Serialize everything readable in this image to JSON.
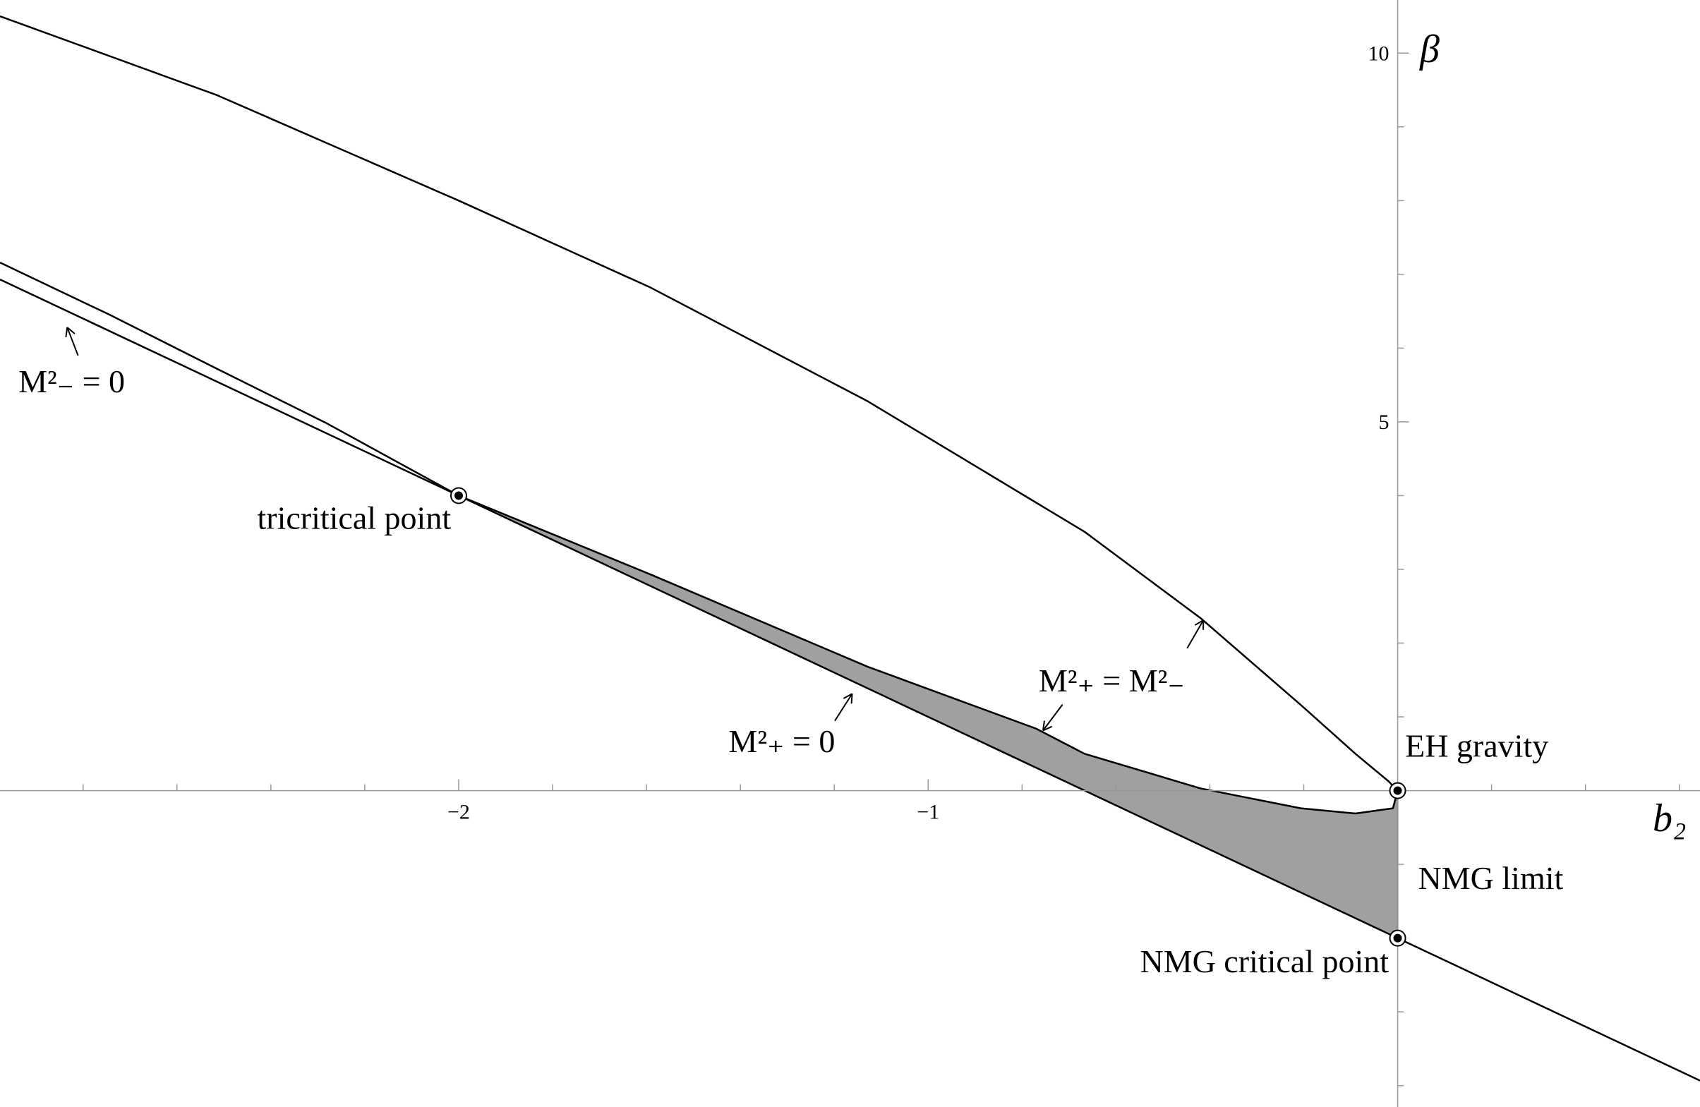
{
  "chart_data": {
    "type": "line",
    "x_label": "b₂",
    "y_label": "β",
    "xlim": [
      -2.977,
      0.644
    ],
    "ylim": [
      -4.29,
      10.72
    ],
    "xticks": [
      {
        "value": -2,
        "label": "−2"
      },
      {
        "value": -1,
        "label": "−1"
      }
    ],
    "yticks": [
      5,
      10
    ],
    "xminor": [
      -2.8,
      -2.6,
      -2.4,
      -2.2,
      -1.8,
      -1.6,
      -1.4,
      -1.2,
      -0.8,
      -0.6,
      -0.4,
      -0.2,
      0.2,
      0.4,
      0.6
    ],
    "yminor": [
      -4,
      -3,
      -2,
      -1,
      1,
      2,
      3,
      4,
      6,
      7,
      8,
      9
    ],
    "series": [
      {
        "color": "#a0a0a0",
        "fill": "#a0a0a0",
        "x": [
          0,
          -0.01,
          -0.09,
          -0.206,
          -0.42,
          -0.667,
          -0.77,
          -1.129,
          -1.591,
          -2.0,
          0
        ],
        "values": [
          0,
          -0.24,
          -0.31,
          -0.24,
          0.03,
          0.5,
          0.84,
          1.68,
          2.93,
          4.0,
          -2.0
        ]
      },
      {
        "color": "#000000",
        "x": [
          -2.977,
          -2.515,
          -2.0,
          -1.591,
          -1.129,
          -0.667,
          -0.42,
          -0.206,
          -0.09,
          -0.02,
          0,
          -0.01,
          -0.09,
          -0.206,
          -0.42,
          -0.667,
          -0.77,
          -1.129,
          -1.591,
          -2.0,
          -2.284,
          -2.515,
          -2.746,
          -2.977
        ],
        "values": [
          10.5,
          9.43,
          8.0,
          6.82,
          5.28,
          3.51,
          2.34,
          1.16,
          0.5,
          0.13,
          0,
          -0.24,
          -0.31,
          -0.24,
          0.03,
          0.5,
          0.84,
          1.68,
          2.93,
          4.0,
          4.99,
          5.72,
          6.46,
          7.16
        ]
      },
      {
        "color": "#000000",
        "x": [
          -2.977,
          0.644
        ],
        "values": [
          6.931,
          -3.932
        ]
      }
    ],
    "points": [
      {
        "x": -2,
        "y": 4,
        "label": "tricritical point"
      },
      {
        "x": 0,
        "y": 0,
        "label": "EH gravity"
      },
      {
        "x": 0,
        "y": -2,
        "label": "NMG critical point"
      }
    ],
    "annotations": [
      "M²₋ = 0",
      "M²₊ = 0",
      "M²₊ = M²₋",
      "NMG limit"
    ]
  }
}
